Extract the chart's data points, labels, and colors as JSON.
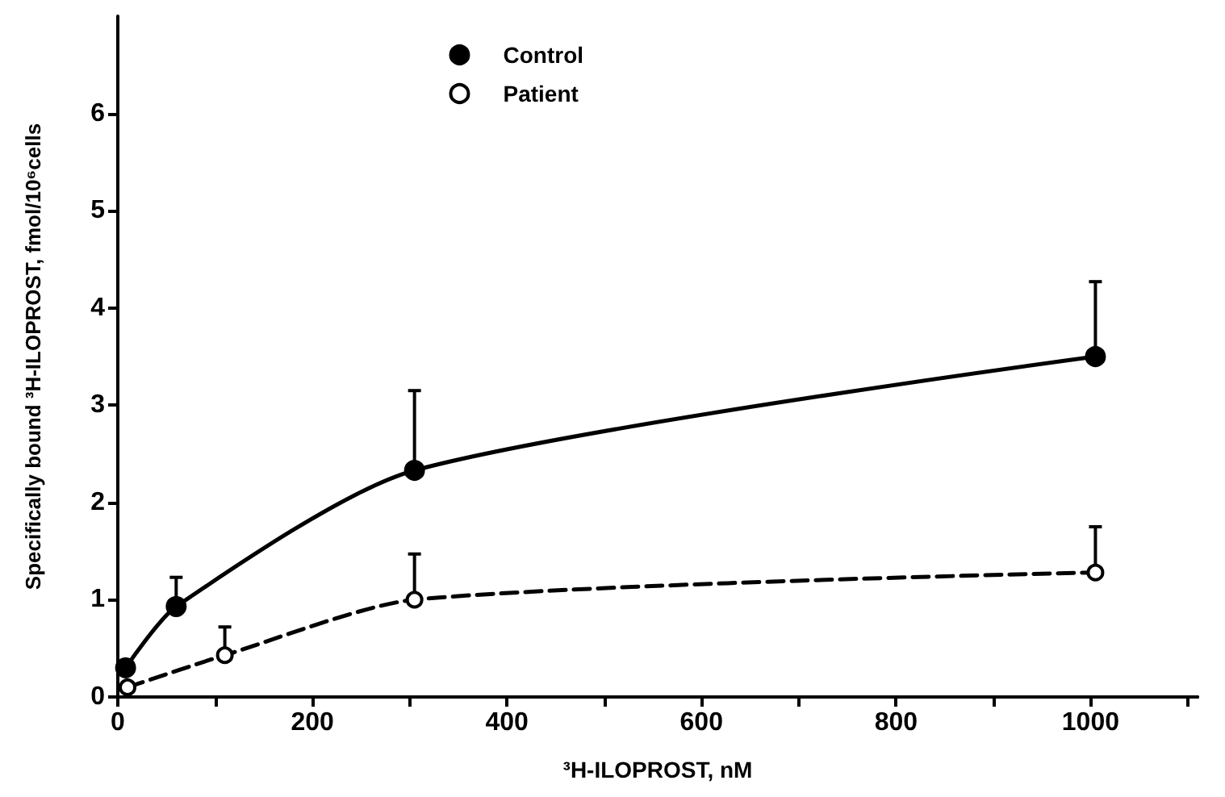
{
  "chart_data": {
    "type": "line",
    "xlabel": "³H-ILOPROST, nM",
    "ylabel": "Specifically bound ³H-ILOPROST, fmol/10⁶cells",
    "xlim": [
      0,
      1110
    ],
    "ylim": [
      0,
      7
    ],
    "xticks": [
      0,
      {
        "value": 100,
        "label": null
      },
      200,
      {
        "value": 300,
        "label": null
      },
      400,
      {
        "value": 500,
        "label": null
      },
      600,
      {
        "value": 700,
        "label": null
      },
      800,
      {
        "value": 900,
        "label": null
      },
      1000,
      {
        "value": 1100,
        "label": null
      }
    ],
    "yticks": [
      0,
      1,
      2,
      3,
      4,
      5,
      6
    ],
    "grid": false,
    "legend": "top left",
    "series": [
      {
        "name": "Control",
        "color": "#000000",
        "marker": "circle",
        "line_style": "solid",
        "x": [
          8,
          60,
          305,
          1005
        ],
        "values": [
          0.3,
          0.93,
          2.33,
          3.5
        ],
        "errors": [
          null,
          [
            0.93,
            1.23
          ],
          [
            2.33,
            3.15
          ],
          [
            3.5,
            4.27
          ]
        ]
      },
      {
        "name": "Patient",
        "color": "#000000",
        "marker": "circle",
        "line_style": "dashed",
        "x": [
          10,
          110,
          305,
          1005
        ],
        "values": [
          0.1,
          0.43,
          1.0,
          1.28
        ],
        "errors": [
          null,
          [
            0.43,
            0.72
          ],
          [
            1.0,
            1.47
          ],
          [
            1.28,
            1.75
          ]
        ]
      }
    ]
  }
}
